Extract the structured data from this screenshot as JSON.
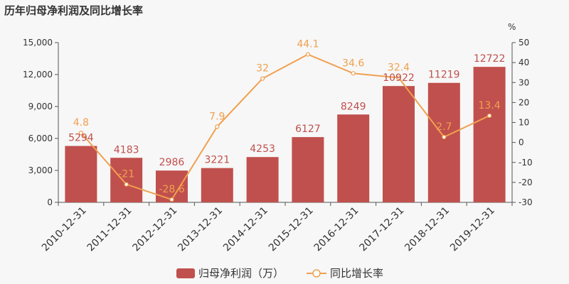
{
  "chart_data": {
    "type": "bar",
    "title": "历年归母净利润及同比增长率",
    "categories": [
      "2010-12-31",
      "2011-12-31",
      "2012-12-31",
      "2013-12-31",
      "2014-12-31",
      "2015-12-31",
      "2016-12-31",
      "2017-12-31",
      "2018-12-31",
      "2019-12-31"
    ],
    "series": [
      {
        "name": "归母净利润（万）",
        "type": "bar",
        "axis": "left",
        "values": [
          5294,
          4183,
          2986,
          3221,
          4253,
          6127,
          8249,
          10922,
          11219,
          12722
        ],
        "labels": [
          "5294",
          "4183",
          "2986",
          "3221",
          "4253",
          "6127",
          "8249",
          "10922",
          "11219",
          "12722"
        ]
      },
      {
        "name": "同比增长率",
        "type": "line",
        "axis": "right",
        "values": [
          4.8,
          -21,
          -28.6,
          7.9,
          32,
          44.1,
          34.6,
          32.4,
          2.7,
          13.4
        ],
        "labels": [
          "4.8",
          "-21",
          "-28.6",
          "7.9",
          "32",
          "44.1",
          "34.6",
          "32.4",
          "2.7",
          "13.4"
        ]
      }
    ],
    "y_left": {
      "ylim": [
        0,
        15000
      ],
      "ticks": [
        0,
        3000,
        6000,
        9000,
        12000,
        15000
      ],
      "tick_labels": [
        "0",
        "3,000",
        "6,000",
        "9,000",
        "12,000",
        "15,000"
      ]
    },
    "y_right": {
      "label": "%",
      "ylim": [
        -30,
        50
      ],
      "ticks": [
        -30,
        -20,
        -10,
        0,
        10,
        20,
        30,
        40,
        50
      ],
      "tick_labels": [
        "-30",
        "-20",
        "-10",
        "0",
        "10",
        "20",
        "30",
        "40",
        "50"
      ]
    },
    "grid": false,
    "legend": "bottom-center",
    "colors": {
      "bar": "#c0504d",
      "line": "#f0a050",
      "bar_label": "#c0504d",
      "line_label": "#f0a050",
      "axis": "#555555",
      "text": "#333333"
    }
  }
}
